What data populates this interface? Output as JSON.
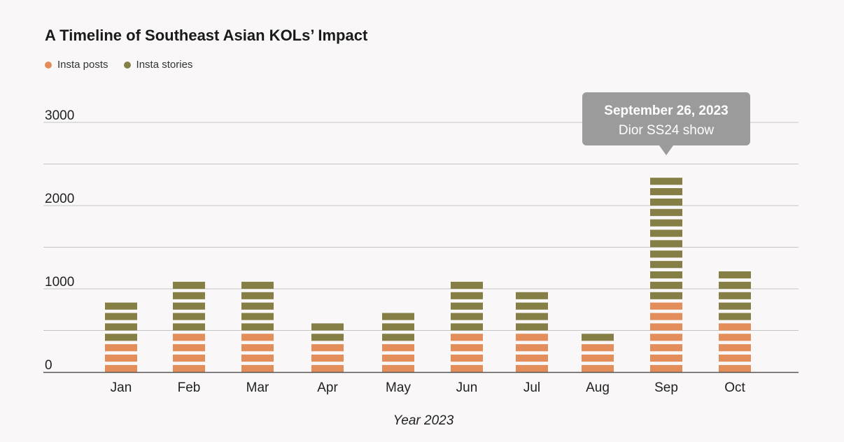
{
  "chart_data": {
    "type": "bar",
    "stacked": true,
    "title": "A Timeline of Southeast Asian KOLs’ Impact",
    "xlabel": "Year 2023",
    "ylabel": "",
    "ylim": [
      0,
      3000
    ],
    "yticks": [
      "0",
      "1000",
      "2000",
      "3000"
    ],
    "grid": true,
    "legend_position": "top-left",
    "unit_per_segment": 125,
    "categories": [
      "Jan",
      "Feb",
      "Mar",
      "Apr",
      "May",
      "Jun",
      "Jul",
      "Aug",
      "Sep",
      "Oct"
    ],
    "series": [
      {
        "name": "Insta posts",
        "color": "#e38d5a",
        "values": [
          375,
          500,
          500,
          375,
          375,
          500,
          500,
          375,
          875,
          625
        ]
      },
      {
        "name": "Insta stories",
        "color": "#857f45",
        "values": [
          500,
          625,
          625,
          250,
          375,
          625,
          500,
          125,
          1500,
          625
        ]
      }
    ],
    "annotation": {
      "category": "Sep",
      "title": "September 26, 2023",
      "text": "Dior SS24 show"
    }
  }
}
